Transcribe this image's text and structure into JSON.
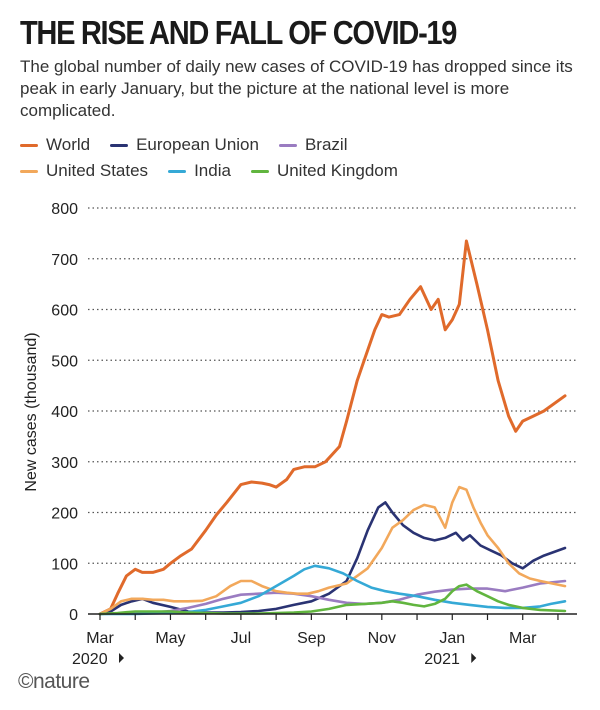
{
  "header": {
    "title": "THE RISE AND FALL OF COVID-19",
    "subtitle": "The global number of daily new cases of COVID-19 has dropped since its peak in early January, but the picture at the national level is more complicated."
  },
  "logo": {
    "text": "©nature"
  },
  "chart_data": {
    "type": "line",
    "title": "THE RISE AND FALL OF COVID-19",
    "ylabel": "New cases (thousand)",
    "xlabel": "",
    "ylim": [
      0,
      800
    ],
    "yticks": [
      0,
      100,
      200,
      300,
      400,
      500,
      600,
      700,
      800
    ],
    "grid": "horizontal dotted",
    "xlim": [
      0,
      13.2
    ],
    "xticks": [
      {
        "value": 0,
        "label": "Mar"
      },
      {
        "value": 2,
        "label": "May"
      },
      {
        "value": 4,
        "label": "Jul"
      },
      {
        "value": 6,
        "label": "Sep"
      },
      {
        "value": 8,
        "label": "Nov"
      },
      {
        "value": 10,
        "label": "Jan"
      },
      {
        "value": 12,
        "label": "Mar"
      }
    ],
    "year_labels": [
      {
        "value": 0,
        "label": "2020"
      },
      {
        "value": 10,
        "label": "2021"
      }
    ],
    "series": [
      {
        "name": "World",
        "color": "#e06a2b",
        "x": [
          0,
          0.3,
          0.5,
          0.75,
          1.0,
          1.2,
          1.5,
          1.8,
          2.0,
          2.3,
          2.6,
          3.0,
          3.3,
          3.6,
          4.0,
          4.3,
          4.6,
          4.8,
          5.0,
          5.3,
          5.5,
          5.8,
          6.1,
          6.4,
          6.8,
          7.0,
          7.3,
          7.5,
          7.8,
          8.0,
          8.2,
          8.5,
          8.8,
          9.1,
          9.4,
          9.6,
          9.8,
          10.0,
          10.2,
          10.4,
          10.7,
          11.0,
          11.3,
          11.6,
          11.8,
          12.0,
          12.3,
          12.6,
          13.2
        ],
        "values": [
          0,
          10,
          40,
          75,
          88,
          82,
          82,
          88,
          100,
          115,
          128,
          165,
          195,
          220,
          255,
          260,
          258,
          255,
          250,
          265,
          285,
          290,
          290,
          300,
          330,
          380,
          460,
          500,
          560,
          590,
          585,
          590,
          620,
          645,
          600,
          620,
          560,
          580,
          610,
          735,
          650,
          560,
          460,
          390,
          360,
          380,
          390,
          400,
          430
        ]
      },
      {
        "name": "European Union",
        "color": "#2a3373",
        "x": [
          0,
          0.3,
          0.6,
          0.9,
          1.2,
          1.5,
          2.0,
          2.5,
          3.0,
          3.5,
          4.0,
          4.5,
          5.0,
          5.5,
          6.0,
          6.5,
          7.0,
          7.3,
          7.6,
          7.9,
          8.1,
          8.3,
          8.6,
          8.9,
          9.2,
          9.5,
          9.8,
          10.1,
          10.3,
          10.5,
          10.8,
          11.1,
          11.4,
          11.7,
          12.0,
          12.3,
          12.6,
          13.2
        ],
        "values": [
          0,
          5,
          18,
          25,
          30,
          22,
          14,
          5,
          3,
          3,
          4,
          6,
          10,
          18,
          25,
          40,
          65,
          110,
          165,
          210,
          220,
          200,
          175,
          160,
          150,
          145,
          150,
          160,
          145,
          155,
          135,
          125,
          115,
          100,
          90,
          105,
          115,
          130
        ]
      },
      {
        "name": "Brazil",
        "color": "#9a7cc1",
        "x": [
          0,
          0.5,
          1.0,
          1.5,
          2.0,
          2.5,
          3.0,
          3.5,
          4.0,
          4.5,
          5.0,
          5.5,
          6.0,
          6.5,
          7.0,
          7.5,
          8.0,
          8.5,
          9.0,
          9.5,
          10.0,
          10.5,
          11.0,
          11.5,
          12.0,
          12.5,
          13.2
        ],
        "values": [
          0,
          1,
          2,
          3,
          6,
          12,
          20,
          30,
          38,
          40,
          42,
          40,
          35,
          28,
          22,
          20,
          22,
          28,
          38,
          44,
          48,
          50,
          50,
          45,
          52,
          60,
          65
        ]
      },
      {
        "name": "United States",
        "color": "#f2a85b",
        "x": [
          0,
          0.3,
          0.6,
          0.9,
          1.2,
          1.5,
          1.8,
          2.1,
          2.5,
          2.9,
          3.3,
          3.7,
          4.0,
          4.3,
          4.6,
          5.0,
          5.3,
          5.6,
          5.9,
          6.2,
          6.5,
          7.0,
          7.3,
          7.6,
          8.0,
          8.3,
          8.6,
          8.9,
          9.2,
          9.5,
          9.8,
          10.0,
          10.2,
          10.4,
          10.6,
          10.8,
          11.0,
          11.3,
          11.6,
          11.9,
          12.2,
          12.5,
          13.2
        ],
        "values": [
          0,
          10,
          25,
          30,
          30,
          28,
          28,
          25,
          25,
          26,
          35,
          55,
          65,
          65,
          55,
          45,
          42,
          40,
          40,
          45,
          52,
          60,
          75,
          90,
          130,
          170,
          185,
          205,
          215,
          210,
          170,
          220,
          250,
          245,
          210,
          180,
          155,
          130,
          100,
          80,
          70,
          65,
          55
        ]
      },
      {
        "name": "India",
        "color": "#35a9d6",
        "x": [
          0,
          0.5,
          1.0,
          1.5,
          2.0,
          2.5,
          3.0,
          3.5,
          4.0,
          4.5,
          5.0,
          5.5,
          5.8,
          6.1,
          6.5,
          6.9,
          7.3,
          7.7,
          8.1,
          8.5,
          9.0,
          9.5,
          10.0,
          10.5,
          11.0,
          11.5,
          12.0,
          12.5,
          12.8,
          13.2
        ],
        "values": [
          0,
          0,
          0,
          1,
          2,
          4,
          8,
          15,
          22,
          35,
          55,
          75,
          88,
          95,
          90,
          80,
          65,
          52,
          45,
          40,
          35,
          28,
          22,
          18,
          14,
          12,
          12,
          15,
          20,
          25
        ]
      },
      {
        "name": "United Kingdom",
        "color": "#61b53f",
        "x": [
          0,
          0.5,
          1.0,
          1.5,
          2.0,
          2.5,
          3.0,
          3.5,
          4.0,
          4.5,
          5.0,
          5.5,
          6.0,
          6.5,
          7.0,
          7.5,
          8.0,
          8.3,
          8.6,
          8.9,
          9.2,
          9.5,
          9.8,
          10.0,
          10.2,
          10.4,
          10.7,
          11.0,
          11.3,
          11.6,
          12.0,
          12.5,
          13.2
        ],
        "values": [
          0,
          2,
          5,
          5,
          5,
          3,
          2,
          1,
          1,
          1,
          2,
          3,
          5,
          10,
          18,
          20,
          22,
          25,
          22,
          18,
          15,
          20,
          30,
          45,
          55,
          58,
          45,
          35,
          25,
          18,
          12,
          8,
          6
        ]
      }
    ]
  }
}
